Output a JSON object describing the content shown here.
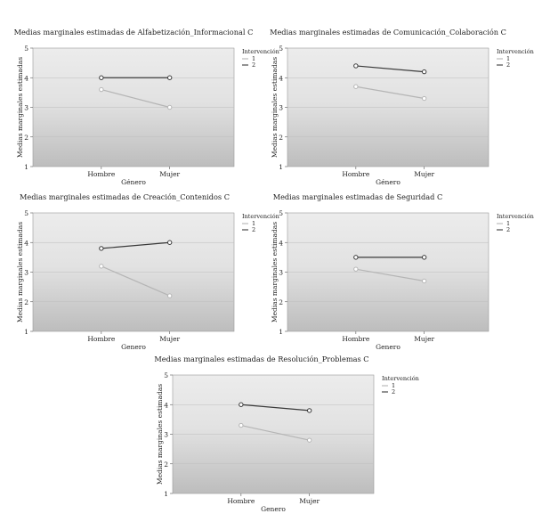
{
  "chart_data": [
    {
      "type": "line",
      "title": "Medias marginales estimadas de Alfabetización_Informacional C",
      "xlabel": "Género",
      "ylabel": "Medias marginales estimadas",
      "categories": [
        "Hombre",
        "Mujer"
      ],
      "ylim": [
        1,
        5
      ],
      "yticks": [
        "1",
        "2",
        "3",
        "4",
        "5"
      ],
      "legend_title": "Intervención",
      "series": [
        {
          "name": "1",
          "color": "#b5b5b5",
          "values": [
            3.6,
            3.0
          ]
        },
        {
          "name": "2",
          "color": "#3a3a3a",
          "values": [
            4.0,
            4.0
          ]
        }
      ]
    },
    {
      "type": "line",
      "title": "Medias marginales estimadas de Comunicación_Colaboración C",
      "xlabel": "Género",
      "ylabel": "Medias marginales estimadas",
      "categories": [
        "Hombre",
        "Mujer"
      ],
      "ylim": [
        1,
        5
      ],
      "yticks": [
        "1",
        "2",
        "3",
        "4",
        "5"
      ],
      "legend_title": "Intervención",
      "series": [
        {
          "name": "1",
          "color": "#b5b5b5",
          "values": [
            3.7,
            3.3
          ]
        },
        {
          "name": "2",
          "color": "#3a3a3a",
          "values": [
            4.4,
            4.2
          ]
        }
      ]
    },
    {
      "type": "line",
      "title": "Medias marginales estimadas de Creación_Contenidos C",
      "xlabel": "Genero",
      "ylabel": "Medias marginales estimadas",
      "categories": [
        "Hombre",
        "Mujer"
      ],
      "ylim": [
        1,
        5
      ],
      "yticks": [
        "1",
        "2",
        "3",
        "4",
        "5"
      ],
      "legend_title": "Intervención",
      "series": [
        {
          "name": "1",
          "color": "#b5b5b5",
          "values": [
            3.2,
            2.2
          ]
        },
        {
          "name": "2",
          "color": "#3a3a3a",
          "values": [
            3.8,
            4.0
          ]
        }
      ]
    },
    {
      "type": "line",
      "title": "Medias marginales estimadas de Seguridad C",
      "xlabel": "Genero",
      "ylabel": "Medias marginales estimadas",
      "categories": [
        "Hombre",
        "Mujer"
      ],
      "ylim": [
        1,
        5
      ],
      "yticks": [
        "1",
        "2",
        "3",
        "4",
        "5"
      ],
      "legend_title": "Intervención",
      "series": [
        {
          "name": "1",
          "color": "#b5b5b5",
          "values": [
            3.1,
            2.7
          ]
        },
        {
          "name": "2",
          "color": "#3a3a3a",
          "values": [
            3.5,
            3.5
          ]
        }
      ]
    },
    {
      "type": "line",
      "title": "Medias marginales estimadas de Resolución_Problemas C",
      "xlabel": "Genero",
      "ylabel": "Medias marginales estimadas",
      "categories": [
        "Hombre",
        "Mujer"
      ],
      "ylim": [
        1,
        5
      ],
      "yticks": [
        "1",
        "2",
        "3",
        "4",
        "5"
      ],
      "legend_title": "Intervención",
      "series": [
        {
          "name": "1",
          "color": "#b5b5b5",
          "values": [
            3.3,
            2.8
          ]
        },
        {
          "name": "2",
          "color": "#3a3a3a",
          "values": [
            4.0,
            3.8
          ]
        }
      ]
    }
  ]
}
